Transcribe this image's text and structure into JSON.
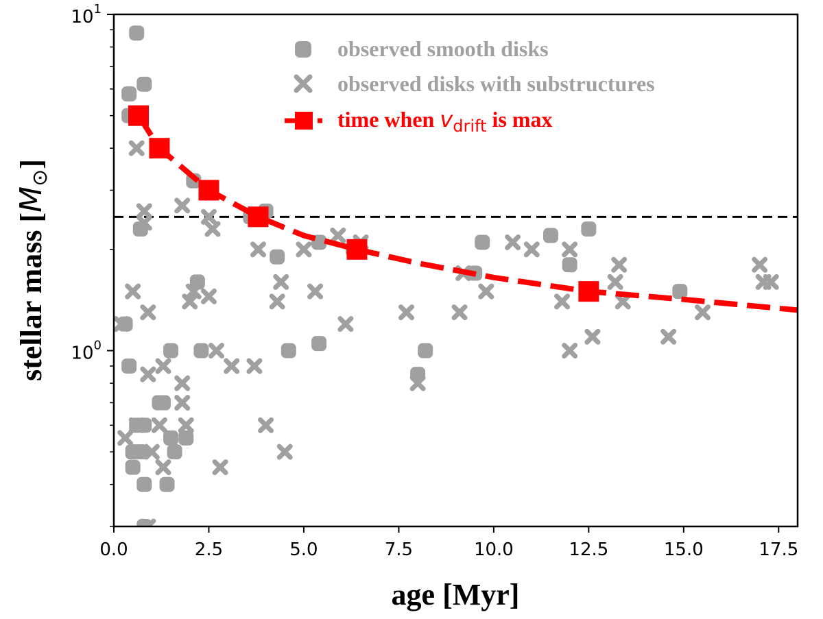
{
  "chart_data": {
    "type": "scatter",
    "xlabel": "age [Myr]",
    "ylabel_text": "stellar mass [",
    "ylabel_math": "M",
    "ylabel_sub": "⊙",
    "ylabel_close": "]",
    "xlim": [
      0.0,
      18.0
    ],
    "ylim": [
      0.3,
      10.0
    ],
    "yscale": "log",
    "x_ticks": [
      {
        "value": 0.0,
        "label": "0.0"
      },
      {
        "value": 2.5,
        "label": "2.5"
      },
      {
        "value": 5.0,
        "label": "5.0"
      },
      {
        "value": 7.5,
        "label": "7.5"
      },
      {
        "value": 10.0,
        "label": "10.0"
      },
      {
        "value": 12.5,
        "label": "12.5"
      },
      {
        "value": 15.0,
        "label": "15.0"
      },
      {
        "value": 17.5,
        "label": "17.5"
      }
    ],
    "y_ticks": [
      {
        "value": 10,
        "base": "10",
        "exp": "1"
      },
      {
        "value": 1,
        "base": "10",
        "exp": "0"
      }
    ],
    "reference_line": {
      "y": 2.5,
      "style": "dashed",
      "color": "#000000"
    },
    "series": [
      {
        "name": "observed smooth disks",
        "marker": "circle",
        "color": "#a0a0a0",
        "points": [
          [
            0.6,
            8.8
          ],
          [
            0.4,
            5.8
          ],
          [
            0.8,
            6.2
          ],
          [
            0.4,
            5.0
          ],
          [
            2.1,
            3.2
          ],
          [
            0.7,
            2.3
          ],
          [
            3.6,
            2.5
          ],
          [
            4.0,
            2.6
          ],
          [
            4.3,
            1.9
          ],
          [
            5.4,
            2.1
          ],
          [
            6.3,
            2.0
          ],
          [
            9.7,
            2.1
          ],
          [
            11.5,
            2.2
          ],
          [
            12.5,
            2.3
          ],
          [
            12.0,
            1.8
          ],
          [
            14.9,
            1.5
          ],
          [
            2.2,
            1.6
          ],
          [
            2.3,
            1.0
          ],
          [
            4.6,
            1.0
          ],
          [
            5.4,
            1.05
          ],
          [
            8.0,
            0.85
          ],
          [
            8.2,
            1.0
          ],
          [
            9.5,
            1.7
          ],
          [
            0.3,
            1.2
          ],
          [
            0.4,
            0.9
          ],
          [
            1.5,
            1.0
          ],
          [
            1.3,
            0.7
          ],
          [
            1.2,
            0.7
          ],
          [
            1.5,
            0.55
          ],
          [
            1.9,
            0.55
          ],
          [
            1.6,
            0.5
          ],
          [
            0.5,
            0.5
          ],
          [
            0.5,
            0.45
          ],
          [
            0.6,
            0.6
          ],
          [
            0.8,
            0.6
          ],
          [
            0.7,
            0.5
          ],
          [
            0.8,
            0.4
          ],
          [
            1.4,
            0.4
          ],
          [
            0.8,
            0.3
          ]
        ]
      },
      {
        "name": "observed disks with substructures",
        "marker": "x",
        "color": "#a0a0a0",
        "points": [
          [
            0.6,
            4.0
          ],
          [
            0.8,
            2.6
          ],
          [
            0.8,
            2.4
          ],
          [
            1.8,
            2.7
          ],
          [
            2.5,
            2.5
          ],
          [
            2.6,
            2.3
          ],
          [
            3.8,
            2.0
          ],
          [
            4.3,
            1.4
          ],
          [
            4.4,
            1.6
          ],
          [
            5.0,
            2.0
          ],
          [
            5.3,
            1.5
          ],
          [
            5.9,
            2.2
          ],
          [
            6.1,
            1.2
          ],
          [
            6.5,
            2.1
          ],
          [
            7.7,
            1.3
          ],
          [
            9.1,
            1.3
          ],
          [
            9.2,
            1.7
          ],
          [
            9.8,
            1.5
          ],
          [
            10.5,
            2.1
          ],
          [
            11.0,
            2.0
          ],
          [
            11.8,
            1.4
          ],
          [
            12.0,
            2.0
          ],
          [
            12.0,
            1.0
          ],
          [
            12.6,
            1.1
          ],
          [
            13.2,
            1.6
          ],
          [
            13.3,
            1.8
          ],
          [
            13.4,
            1.4
          ],
          [
            14.6,
            1.1
          ],
          [
            15.5,
            1.3
          ],
          [
            17.0,
            1.8
          ],
          [
            17.1,
            1.6
          ],
          [
            17.3,
            1.6
          ],
          [
            0.2,
            1.2
          ],
          [
            0.5,
            1.5
          ],
          [
            0.9,
            1.3
          ],
          [
            2.0,
            1.4
          ],
          [
            2.1,
            1.5
          ],
          [
            2.5,
            1.45
          ],
          [
            2.7,
            1.0
          ],
          [
            3.1,
            0.9
          ],
          [
            3.7,
            0.9
          ],
          [
            4.0,
            0.6
          ],
          [
            4.5,
            0.5
          ],
          [
            2.8,
            0.45
          ],
          [
            0.3,
            0.55
          ],
          [
            0.9,
            0.85
          ],
          [
            1.3,
            0.9
          ],
          [
            1.8,
            0.8
          ],
          [
            1.8,
            0.7
          ],
          [
            1.2,
            0.6
          ],
          [
            1.9,
            0.6
          ],
          [
            1.3,
            0.45
          ],
          [
            1.0,
            0.5
          ],
          [
            0.6,
            0.6
          ],
          [
            0.9,
            0.3
          ],
          [
            8.0,
            0.8
          ]
        ]
      },
      {
        "name": "time when v_drift is max",
        "marker": "square",
        "line": "dashed",
        "color": "#ff0000",
        "markers": [
          [
            0.65,
            5.0
          ],
          [
            1.2,
            4.0
          ],
          [
            2.5,
            3.0
          ],
          [
            3.8,
            2.5
          ],
          [
            6.4,
            2.0
          ],
          [
            12.5,
            1.5
          ]
        ],
        "curve": [
          [
            0.65,
            5.0
          ],
          [
            1.2,
            4.0
          ],
          [
            2.5,
            3.0
          ],
          [
            3.8,
            2.5
          ],
          [
            5.0,
            2.2
          ],
          [
            6.4,
            2.0
          ],
          [
            8.0,
            1.82
          ],
          [
            10.0,
            1.65
          ],
          [
            12.5,
            1.5
          ],
          [
            15.0,
            1.42
          ],
          [
            18.0,
            1.32
          ]
        ]
      }
    ],
    "legend": {
      "placement": "top-right",
      "entries": [
        {
          "text": "observed smooth disks",
          "color": "#a0a0a0"
        },
        {
          "text": "observed disks with substructures",
          "color": "#a0a0a0"
        },
        {
          "prefix": "time when ",
          "math": "v",
          "sub": "drift",
          "suffix": " is max",
          "color": "#ff0000"
        }
      ]
    }
  }
}
